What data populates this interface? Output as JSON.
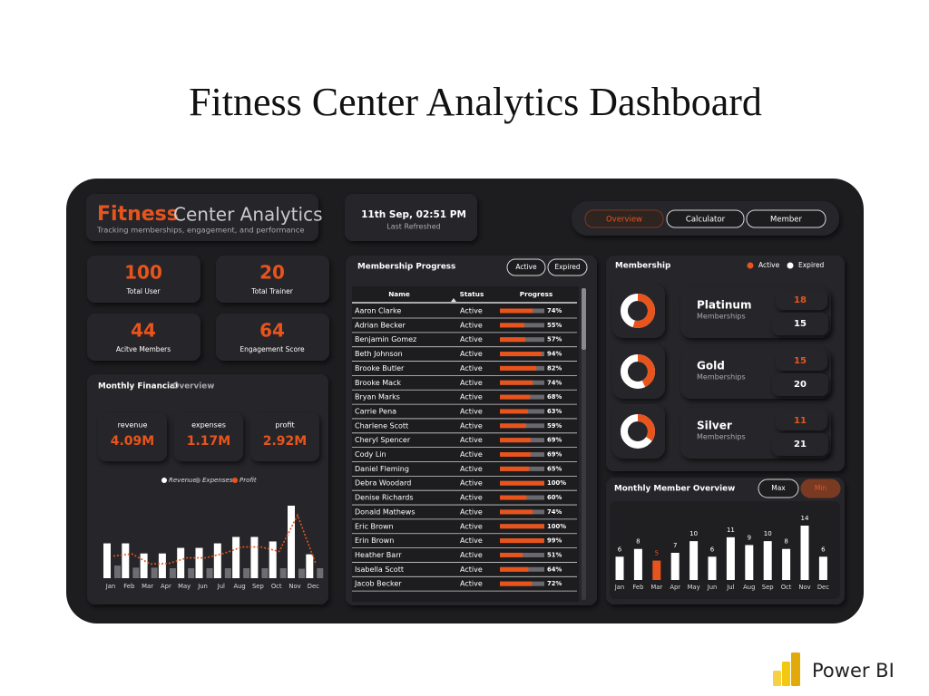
{
  "page_title": "Fitness Center Analytics Dashboard",
  "header": {
    "brand_bold": "Fitness",
    "brand_rest": "Center Analytics",
    "tagline": "Tracking memberships, engagement, and performance",
    "refresh_time": "11th Sep, 02:51 PM",
    "refresh_label": "Last Refreshed"
  },
  "nav": {
    "buttons": [
      "Overview",
      "Calculator",
      "Member"
    ],
    "active": 0
  },
  "kpis": [
    {
      "value": 100,
      "label": "Total User"
    },
    {
      "value": 20,
      "label": "Total Trainer"
    },
    {
      "value": 44,
      "label": "Acitve Members"
    },
    {
      "value": 64,
      "label": "Engagement Score"
    }
  ],
  "financial": {
    "title": "Monthly Financial",
    "title_suffix": "Overview",
    "cards": [
      {
        "label": "revenue",
        "value": "4.09M"
      },
      {
        "label": "expenses",
        "value": "1.17M"
      },
      {
        "label": "profit",
        "value": "2.92M"
      }
    ],
    "chart": {
      "type": "bar",
      "categories": [
        "Jan",
        "Feb",
        "Mar",
        "Apr",
        "May",
        "Jun",
        "Jul",
        "Aug",
        "Sep",
        "Oct",
        "Nov",
        "Dec"
      ],
      "series": [
        {
          "name": "Revenue",
          "color": "#ffffff",
          "values": [
            331,
            331,
            235,
            235,
            288,
            288,
            331,
            392,
            392,
            349,
            689,
            227
          ]
        },
        {
          "name": "Expenses",
          "color": "#6e6e72",
          "values": [
            120,
            100,
            100,
            95,
            95,
            95,
            95,
            95,
            95,
            95,
            90,
            95
          ]
        },
        {
          "name": "Profit",
          "color": "#e8541c",
          "type": "line",
          "values": [
            211,
            231,
            135,
            140,
            193,
            193,
            236,
            297,
            297,
            254,
            599,
            132
          ]
        }
      ]
    }
  },
  "progress": {
    "title": "Membership Progress",
    "filters": [
      "Active",
      "Expired"
    ],
    "columns": [
      "Name",
      "Status",
      "Progress"
    ],
    "bar_color": "#e8541c",
    "rows": [
      {
        "name": "Aaron Clarke",
        "status": "Active",
        "progress": 74,
        "label": "74%"
      },
      {
        "name": "Adrian Becker",
        "status": "Active",
        "progress": 55,
        "label": "55%"
      },
      {
        "name": "Benjamin Gomez",
        "status": "Active",
        "progress": 57,
        "label": "57%"
      },
      {
        "name": "Beth Johnson",
        "status": "Active",
        "progress": 94,
        "label": "94%"
      },
      {
        "name": "Brooke Butler",
        "status": "Active",
        "progress": 82,
        "label": "82%"
      },
      {
        "name": "Brooke Mack",
        "status": "Active",
        "progress": 74,
        "label": "74%"
      },
      {
        "name": "Bryan Marks",
        "status": "Active",
        "progress": 68,
        "label": "68%"
      },
      {
        "name": "Carrie Pena",
        "status": "Active",
        "progress": 63,
        "label": "63%"
      },
      {
        "name": "Charlene Scott",
        "status": "Active",
        "progress": 59,
        "label": "59%"
      },
      {
        "name": "Cheryl Spencer",
        "status": "Active",
        "progress": 69,
        "label": "69%"
      },
      {
        "name": "Cody Lin",
        "status": "Active",
        "progress": 69,
        "label": "69%"
      },
      {
        "name": "Daniel Fleming",
        "status": "Active",
        "progress": 65,
        "label": "65%"
      },
      {
        "name": "Debra Woodard",
        "status": "Active",
        "progress": 100,
        "label": "100%"
      },
      {
        "name": "Denise Richards",
        "status": "Active",
        "progress": 60,
        "label": "60%"
      },
      {
        "name": "Donald Mathews",
        "status": "Active",
        "progress": 74,
        "label": "74%"
      },
      {
        "name": "Eric Brown",
        "status": "Active",
        "progress": 100,
        "label": "100%"
      },
      {
        "name": "Erin Brown",
        "status": "Active",
        "progress": 99,
        "label": "99%"
      },
      {
        "name": "Heather Barr",
        "status": "Active",
        "progress": 51,
        "label": "51%"
      },
      {
        "name": "Isabella Scott",
        "status": "Active",
        "progress": 64,
        "label": "64%"
      },
      {
        "name": "Jacob Becker",
        "status": "Active",
        "progress": 72,
        "label": "72%"
      }
    ]
  },
  "membership": {
    "title": "Membership",
    "legend": [
      "Active",
      "Expired"
    ],
    "active_color": "#e8541c",
    "expired_color": "#ffffff",
    "subtitle": "Memberships",
    "tiers": [
      {
        "name": "Platinum",
        "active": 18,
        "expired": 15
      },
      {
        "name": "Gold",
        "active": 15,
        "expired": 20
      },
      {
        "name": "Silver",
        "active": 11,
        "expired": 21
      }
    ]
  },
  "member_chart": {
    "type": "bar",
    "title": "Monthly Member Overview",
    "buttons": [
      "Max",
      "Min"
    ],
    "active_button": 1,
    "color": "#ffffff",
    "highlight_color": "#e8541c",
    "categories": [
      "Jan",
      "Feb",
      "Mar",
      "Apr",
      "May",
      "Jun",
      "Jul",
      "Aug",
      "Sep",
      "Oct",
      "Nov",
      "Dec"
    ],
    "values": [
      6,
      8,
      5,
      7,
      10,
      6,
      11,
      9,
      10,
      8,
      14,
      6
    ]
  },
  "footer": {
    "brand": "Power BI"
  }
}
